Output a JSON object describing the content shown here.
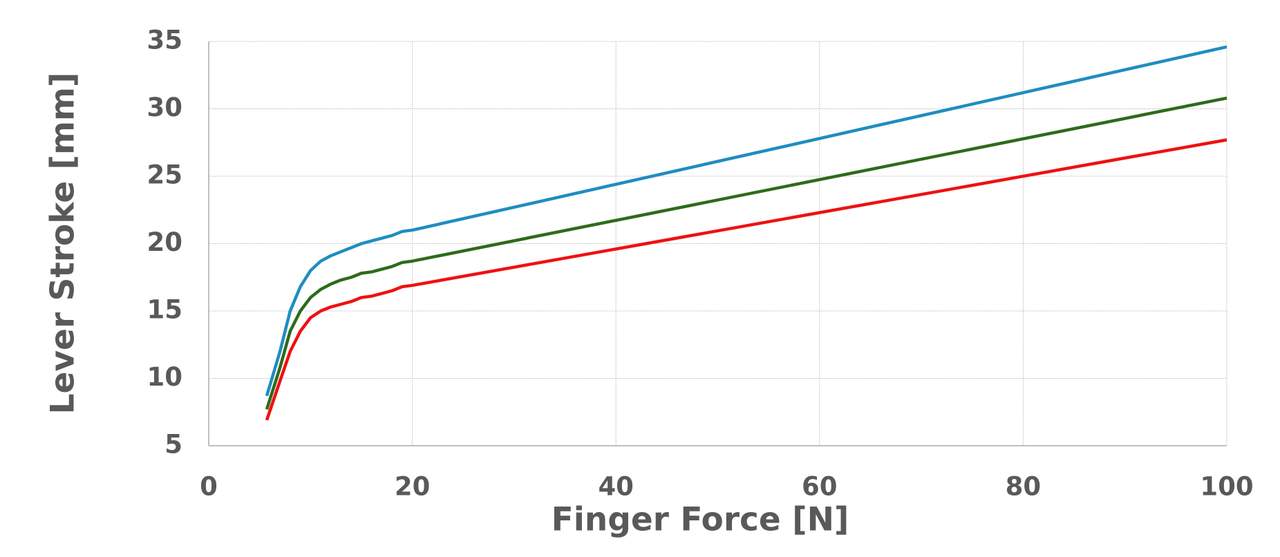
{
  "chart_data": {
    "type": "line",
    "x_label": "Finger Force [N]",
    "y_label": "Lever Stroke [mm]",
    "x": [
      5.7,
      7,
      8,
      9,
      10,
      11,
      12,
      13,
      14,
      15,
      16,
      17,
      18,
      19,
      20,
      100
    ],
    "series": [
      {
        "color": "#1f8dc0",
        "values": [
          8.7,
          12,
          15,
          16.8,
          18,
          18.7,
          19.1,
          19.4,
          19.7,
          20,
          20.2,
          20.4,
          20.6,
          20.9,
          21,
          34.6
        ]
      },
      {
        "color": "#2e6b1a",
        "values": [
          7.7,
          10.8,
          13.5,
          15,
          16,
          16.6,
          17,
          17.3,
          17.5,
          17.8,
          17.9,
          18.1,
          18.3,
          18.6,
          18.7,
          30.8
        ]
      },
      {
        "color": "#ee1111",
        "values": [
          6.9,
          9.8,
          12,
          13.5,
          14.5,
          15,
          15.3,
          15.5,
          15.7,
          16,
          16.1,
          16.3,
          16.5,
          16.8,
          16.9,
          27.7
        ]
      }
    ],
    "xlim": [
      0,
      100
    ],
    "xticks": [
      0,
      20,
      40,
      60,
      80,
      100
    ],
    "ylim": [
      5,
      35
    ],
    "yticks": [
      5,
      10,
      15,
      20,
      25,
      30,
      35
    ],
    "grid": true
  }
}
